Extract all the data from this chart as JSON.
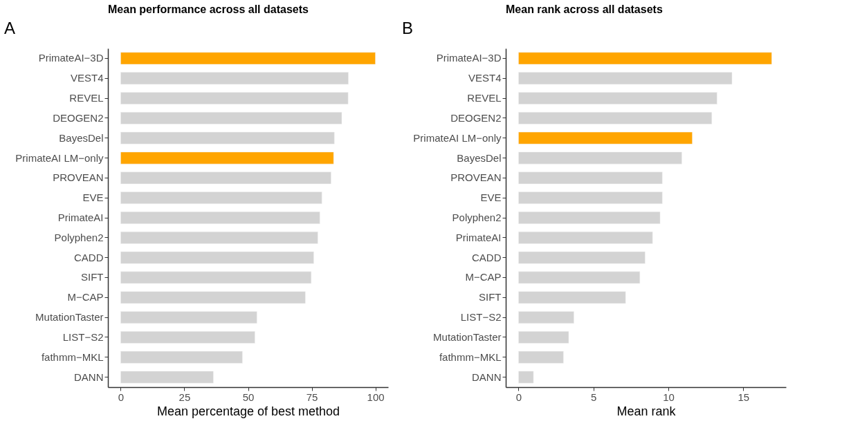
{
  "chart_data": [
    {
      "type": "bar",
      "orientation": "horizontal",
      "title": "Mean performance across all datasets",
      "xlabel": "Mean percentage of best method",
      "annotations": [
        "A"
      ],
      "categories": [
        "PrimateAI−3D",
        "VEST4",
        "REVEL",
        "DEOGEN2",
        "BayesDel",
        "PrimateAI LM−only",
        "PROVEAN",
        "EVE",
        "PrimateAI",
        "Polyphen2",
        "CADD",
        "SIFT",
        "M−CAP",
        "MutationTaster",
        "LIST−S2",
        "fathmm−MKL",
        "DANN"
      ],
      "values": [
        100,
        89.4,
        89.3,
        86.8,
        83.9,
        83.6,
        82.6,
        79,
        78.2,
        77.4,
        75.8,
        74.8,
        72.5,
        53.5,
        52.7,
        47.8,
        36.4
      ],
      "colors": [
        "#ffa500",
        "#d3d3d3",
        "#d3d3d3",
        "#d3d3d3",
        "#d3d3d3",
        "#ffa500",
        "#d3d3d3",
        "#d3d3d3",
        "#d3d3d3",
        "#d3d3d3",
        "#d3d3d3",
        "#d3d3d3",
        "#d3d3d3",
        "#d3d3d3",
        "#d3d3d3",
        "#d3d3d3",
        "#d3d3d3"
      ],
      "xlim": [
        -5,
        105
      ],
      "xticks": [
        0,
        25,
        50,
        75,
        100
      ],
      "grid": false
    },
    {
      "type": "bar",
      "orientation": "horizontal",
      "title": "Mean rank across all datasets",
      "xlabel": "Mean rank",
      "annotations": [
        "B"
      ],
      "categories": [
        "PrimateAI−3D",
        "VEST4",
        "REVEL",
        "DEOGEN2",
        "PrimateAI LM−only",
        "BayesDel",
        "PROVEAN",
        "EVE",
        "Polyphen2",
        "PrimateAI",
        "CADD",
        "M−CAP",
        "SIFT",
        "LIST−S2",
        "MutationTaster",
        "fathmm−MKL",
        "DANN"
      ],
      "values": [
        16.9,
        14.25,
        13.25,
        12.9,
        11.6,
        10.9,
        9.6,
        9.6,
        9.45,
        8.95,
        8.45,
        8.1,
        7.15,
        3.7,
        3.35,
        3.0,
        1.0
      ],
      "colors": [
        "#ffa500",
        "#d3d3d3",
        "#d3d3d3",
        "#d3d3d3",
        "#ffa500",
        "#d3d3d3",
        "#d3d3d3",
        "#d3d3d3",
        "#d3d3d3",
        "#d3d3d3",
        "#d3d3d3",
        "#d3d3d3",
        "#d3d3d3",
        "#d3d3d3",
        "#d3d3d3",
        "#d3d3d3",
        "#d3d3d3"
      ],
      "xlim": [
        -0.85,
        17.85
      ],
      "xticks": [
        0,
        5,
        10,
        15
      ],
      "grid": false
    }
  ]
}
